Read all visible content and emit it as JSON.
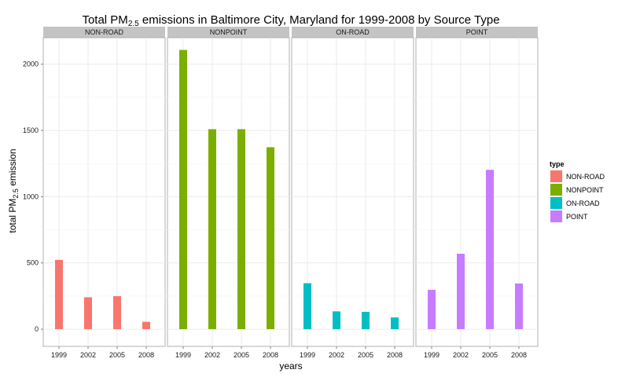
{
  "chart_data": {
    "type": "bar",
    "title_parts": {
      "before": "Total PM",
      "subscript": "2.5",
      "after": " emissions in Baltimore City, Maryland for 1999-2008 by Source Type"
    },
    "xlabel": "years",
    "ylabel_parts": {
      "before": "total PM",
      "subscript": "2.5",
      "after": " emission"
    },
    "categories": [
      "1999",
      "2002",
      "2005",
      "2008"
    ],
    "ylim": [
      -130,
      2200
    ],
    "yticks": [
      0,
      500,
      1000,
      1500,
      2000
    ],
    "grid": true,
    "legend": {
      "title": "type",
      "position": "right"
    },
    "series": [
      {
        "name": "NON-ROAD",
        "color": "#f8766d",
        "values": [
          522.94,
          240.85,
          248.93,
          55.82
        ]
      },
      {
        "name": "NONPOINT",
        "color": "#7cae00",
        "values": [
          2107.63,
          1509.5,
          1509.5,
          1373.21
        ]
      },
      {
        "name": "ON-ROAD",
        "color": "#00bfc4",
        "values": [
          346.82,
          134.31,
          130.43,
          88.28
        ]
      },
      {
        "name": "POINT",
        "color": "#c77cff",
        "values": [
          296.8,
          569.26,
          1202.49,
          344.98
        ]
      }
    ]
  }
}
